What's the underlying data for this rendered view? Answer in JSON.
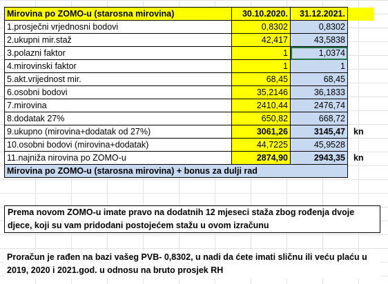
{
  "table": {
    "header": {
      "label": "Mirovina po ZOMO-u (starosna mirovina)",
      "col1": "30.10.2020.",
      "col2": "31.12.2021."
    },
    "rows": [
      {
        "label": "1.prosječni vrjednosni bodovi",
        "v1": "0,8302",
        "v2": "0,8302",
        "unit": ""
      },
      {
        "label": "2.ukupni mir.staž",
        "v1": "42,417",
        "v2": "43,5838",
        "unit": ""
      },
      {
        "label": "3.polazni faktor",
        "v1": "1",
        "v2": "1,0374",
        "unit": ""
      },
      {
        "label": "4.mirovinski faktor",
        "v1": "1",
        "v2": "1",
        "unit": ""
      },
      {
        "label": "5.akt.vrijednost mir.",
        "v1": "68,45",
        "v2": "68,45",
        "unit": ""
      },
      {
        "label": "6.osobni bodovi",
        "v1": "35,2146",
        "v2": "36,1833",
        "unit": ""
      },
      {
        "label": "7.mirovina",
        "v1": "2410,44",
        "v2": "2476,74",
        "unit": ""
      },
      {
        "label": "8.dodatak 27%",
        "v1": "650,82",
        "v2": "668,72",
        "unit": ""
      },
      {
        "label": "9.ukupno (mirovina+dodatak od 27%)",
        "v1": "3061,26",
        "v2": "3145,47",
        "unit": "kn"
      },
      {
        "label": "10.osobni bodovi (mirovina+dodatak)",
        "v1": "44,7225",
        "v2": "45,9528",
        "unit": ""
      },
      {
        "label": "11.najniža nirovina po ZOMO-u",
        "v1": "2874,90",
        "v2": "2943,35",
        "unit": "kn"
      }
    ],
    "footer": "Mirovina po ZOMO-u (starosna mirovina) + bonus za dulji rad"
  },
  "notes": {
    "note1": "Prema novom ZOMO-u imate pravo na dodatnih 12 mjeseci staža zbog rođenja dvoje djece, koji su vam pridodani postojećem stažu u ovom izračunu",
    "note2": "Proračun je rađen na bazi vašeg PVB- 0,8302, u nadi da ćete imati sličnu ili veću plaću u 2019, 2020 i 2021.god. u odnosu na bruto prosjek RH"
  },
  "colors": {
    "yellow": "#ffff00",
    "light_blue": "#c6d9f1",
    "selection": "#217346"
  }
}
